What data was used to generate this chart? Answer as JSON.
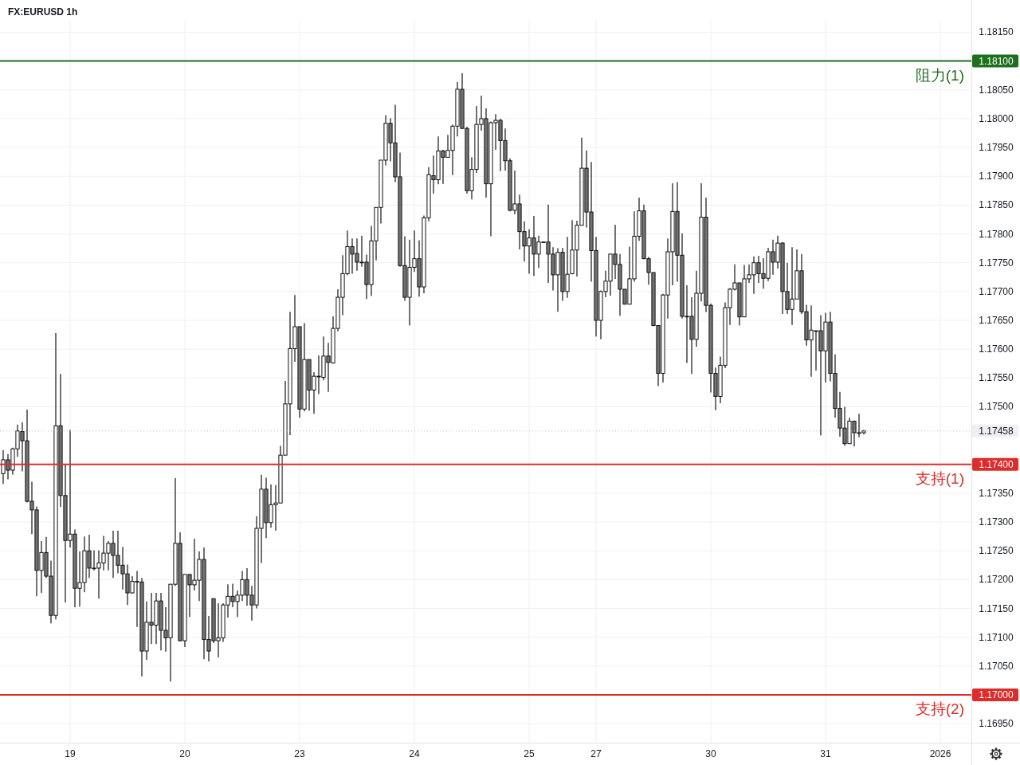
{
  "chart_data": {
    "type": "candlestick",
    "title": "FX:EURUSD 1h",
    "categories": [
      null,
      null,
      null,
      null,
      null,
      null,
      null,
      null,
      null,
      null,
      null,
      null,
      null,
      null,
      "19",
      null,
      null,
      null,
      null,
      null,
      null,
      null,
      null,
      null,
      null,
      null,
      null,
      null,
      null,
      null,
      null,
      null,
      null,
      null,
      null,
      null,
      null,
      null,
      "20",
      null,
      null,
      null,
      null,
      null,
      null,
      null,
      null,
      null,
      null,
      null,
      null,
      null,
      null,
      null,
      null,
      null,
      null,
      null,
      null,
      null,
      null,
      null,
      "23",
      null,
      null,
      null,
      null,
      null,
      null,
      null,
      null,
      null,
      null,
      null,
      null,
      null,
      null,
      null,
      null,
      null,
      null,
      null,
      null,
      null,
      null,
      null,
      "24",
      null,
      null,
      null,
      null,
      null,
      null,
      null,
      null,
      null,
      null,
      null,
      null,
      null,
      null,
      null,
      null,
      null,
      null,
      null,
      null,
      null,
      null,
      null,
      "25",
      null,
      null,
      null,
      null,
      null,
      null,
      null,
      null,
      null,
      null,
      null,
      null,
      null,
      "27",
      null,
      null,
      null,
      null,
      null,
      null,
      null,
      null,
      null,
      null,
      null,
      null,
      null,
      null,
      null,
      null,
      null,
      null,
      null,
      null,
      null,
      null,
      null,
      "30",
      null,
      null,
      null,
      null,
      null,
      null,
      null,
      null,
      null,
      null,
      null,
      null,
      null,
      null,
      null,
      null,
      null,
      null,
      null,
      null,
      null,
      null,
      null,
      "31",
      null,
      null,
      null,
      null,
      null,
      null,
      null,
      null,
      null,
      null,
      null,
      null,
      null,
      null,
      null,
      null,
      null,
      null,
      null,
      null,
      null,
      null,
      null,
      "2026",
      null,
      null,
      null,
      null,
      null,
      null
    ],
    "ohlc": [
      [
        1.17384,
        1.17425,
        1.17366,
        1.17408
      ],
      [
        1.17408,
        1.17418,
        1.17374,
        1.1739
      ],
      [
        1.1739,
        1.17429,
        1.17382,
        1.17427
      ],
      [
        1.17427,
        1.17469,
        1.17413,
        1.17458
      ],
      [
        1.17457,
        1.17473,
        1.17388,
        1.17441
      ],
      [
        1.17441,
        1.17495,
        1.17334,
        1.17336
      ],
      [
        1.17336,
        1.1737,
        1.17279,
        1.17321
      ],
      [
        1.17321,
        1.17327,
        1.17171,
        1.17216
      ],
      [
        1.17216,
        1.17267,
        1.17177,
        1.17247
      ],
      [
        1.17247,
        1.17274,
        1.17203,
        1.17206
      ],
      [
        1.17206,
        1.17233,
        1.17124,
        1.17138
      ],
      [
        1.17138,
        1.17628,
        1.17131,
        1.17467
      ],
      [
        1.17467,
        1.17557,
        1.17326,
        1.17346
      ],
      [
        1.17346,
        1.17401,
        1.1716,
        1.17268
      ],
      [
        1.17268,
        1.1746,
        1.17256,
        1.17279
      ],
      [
        1.17279,
        1.17287,
        1.17152,
        1.17185
      ],
      [
        1.17185,
        1.17249,
        1.17153,
        1.17195
      ],
      [
        1.17195,
        1.17275,
        1.17178,
        1.1725
      ],
      [
        1.1725,
        1.17278,
        1.17203,
        1.1722
      ],
      [
        1.1722,
        1.17251,
        1.17216,
        1.1722
      ],
      [
        1.1722,
        1.17251,
        1.17167,
        1.17229
      ],
      [
        1.17229,
        1.17276,
        1.17216,
        1.17246
      ],
      [
        1.17246,
        1.17267,
        1.17216,
        1.17263
      ],
      [
        1.17263,
        1.17285,
        1.17203,
        1.17242
      ],
      [
        1.17242,
        1.17285,
        1.17211,
        1.17225
      ],
      [
        1.17225,
        1.17257,
        1.17183,
        1.1721
      ],
      [
        1.1721,
        1.17226,
        1.17156,
        1.17177
      ],
      [
        1.17177,
        1.17206,
        1.17176,
        1.17197
      ],
      [
        1.17197,
        1.17215,
        1.17118,
        1.17197
      ],
      [
        1.17196,
        1.17203,
        1.17032,
        1.17076
      ],
      [
        1.17076,
        1.17162,
        1.17061,
        1.17126
      ],
      [
        1.17126,
        1.17177,
        1.17088,
        1.17121
      ],
      [
        1.17121,
        1.17177,
        1.17088,
        1.17163
      ],
      [
        1.17163,
        1.17177,
        1.17077,
        1.17112
      ],
      [
        1.17112,
        1.17152,
        1.17075,
        1.17099
      ],
      [
        1.17099,
        1.17192,
        1.17023,
        1.17192
      ],
      [
        1.17192,
        1.17376,
        1.17189,
        1.17263
      ],
      [
        1.17263,
        1.17282,
        1.17093,
        1.17094
      ],
      [
        1.17094,
        1.17209,
        1.17083,
        1.17209
      ],
      [
        1.17209,
        1.17209,
        1.17135,
        1.17191
      ],
      [
        1.17191,
        1.17271,
        1.17181,
        1.17199
      ],
      [
        1.17199,
        1.17249,
        1.17163,
        1.17235
      ],
      [
        1.17235,
        1.17256,
        1.17062,
        1.17096
      ],
      [
        1.17096,
        1.17137,
        1.17058,
        1.17076
      ],
      [
        1.17167,
        1.17167,
        1.1709,
        1.17094
      ],
      [
        1.17094,
        1.17159,
        1.17065,
        1.17099
      ],
      [
        1.17099,
        1.17159,
        1.17092,
        1.17156
      ],
      [
        1.17156,
        1.17192,
        1.17134,
        1.17171
      ],
      [
        1.17171,
        1.17193,
        1.17152,
        1.17162
      ],
      [
        1.17162,
        1.17181,
        1.17135,
        1.17173
      ],
      [
        1.17173,
        1.17215,
        1.17163,
        1.172
      ],
      [
        1.172,
        1.1722,
        1.17155,
        1.17173
      ],
      [
        1.17173,
        1.17189,
        1.17129,
        1.17156
      ],
      [
        1.17156,
        1.1731,
        1.1715,
        1.17289
      ],
      [
        1.17289,
        1.17382,
        1.17229,
        1.17357
      ],
      [
        1.17357,
        1.17377,
        1.17272,
        1.17299
      ],
      [
        1.17299,
        1.17365,
        1.1729,
        1.1733
      ],
      [
        1.1733,
        1.17364,
        1.17285,
        1.17333
      ],
      [
        1.17333,
        1.17432,
        1.17333,
        1.17416
      ],
      [
        1.17416,
        1.17545,
        1.17416,
        1.17505
      ],
      [
        1.17505,
        1.17665,
        1.17451,
        1.17601
      ],
      [
        1.17601,
        1.17694,
        1.17578,
        1.17639
      ],
      [
        1.17639,
        1.17639,
        1.17481,
        1.17496
      ],
      [
        1.17496,
        1.17645,
        1.17492,
        1.17582
      ],
      [
        1.17582,
        1.17582,
        1.17493,
        1.17529
      ],
      [
        1.17529,
        1.1756,
        1.17488,
        1.17553
      ],
      [
        1.17553,
        1.17589,
        1.17522,
        1.17553
      ],
      [
        1.17551,
        1.17622,
        1.17546,
        1.17588
      ],
      [
        1.17588,
        1.17611,
        1.17526,
        1.17577
      ],
      [
        1.17576,
        1.17657,
        1.17575,
        1.17636
      ],
      [
        1.17636,
        1.17704,
        1.17631,
        1.1769
      ],
      [
        1.1769,
        1.17763,
        1.17659,
        1.17731
      ],
      [
        1.17731,
        1.17806,
        1.17728,
        1.17778
      ],
      [
        1.17778,
        1.17792,
        1.17731,
        1.17765
      ],
      [
        1.17766,
        1.17792,
        1.17736,
        1.17751
      ],
      [
        1.17751,
        1.17797,
        1.17743,
        1.17751
      ],
      [
        1.17751,
        1.17764,
        1.17687,
        1.17712
      ],
      [
        1.17712,
        1.17814,
        1.17692,
        1.17788
      ],
      [
        1.17788,
        1.17846,
        1.17754,
        1.17846
      ],
      [
        1.17846,
        1.17928,
        1.17818,
        1.17928
      ],
      [
        1.17928,
        1.18006,
        1.17919,
        1.17992
      ],
      [
        1.17992,
        1.18001,
        1.17926,
        1.17958
      ],
      [
        1.17958,
        1.18024,
        1.1789,
        1.17899
      ],
      [
        1.17899,
        1.17941,
        1.17743,
        1.17745
      ],
      [
        1.17745,
        1.17796,
        1.17684,
        1.1769
      ],
      [
        1.1769,
        1.1779,
        1.17641,
        1.17742
      ],
      [
        1.17742,
        1.17806,
        1.17734,
        1.17757
      ],
      [
        1.17757,
        1.17789,
        1.17691,
        1.17708
      ],
      [
        1.17708,
        1.17832,
        1.17697,
        1.17828
      ],
      [
        1.17828,
        1.17916,
        1.17822,
        1.17903
      ],
      [
        1.17901,
        1.17936,
        1.1787,
        1.17894
      ],
      [
        1.17894,
        1.17969,
        1.17886,
        1.17944
      ],
      [
        1.17944,
        1.17946,
        1.17887,
        1.17933
      ],
      [
        1.17933,
        1.17972,
        1.17933,
        1.17945
      ],
      [
        1.17945,
        1.1799,
        1.17902,
        1.17987
      ],
      [
        1.17987,
        1.18064,
        1.17969,
        1.18051
      ],
      [
        1.18051,
        1.18079,
        1.17983,
        1.17983
      ],
      [
        1.17983,
        1.17986,
        1.1787,
        1.17875
      ],
      [
        1.17875,
        1.17933,
        1.1786,
        1.17912
      ],
      [
        1.17912,
        1.18022,
        1.17906,
        1.1799
      ],
      [
        1.1799,
        1.1804,
        1.17979,
        1.18
      ],
      [
        1.18,
        1.18018,
        1.17863,
        1.17887
      ],
      [
        1.17887,
        1.17995,
        1.17796,
        1.17993
      ],
      [
        1.17993,
        1.18008,
        1.17946,
        1.17997
      ],
      [
        1.17997,
        1.18,
        1.17909,
        1.17962
      ],
      [
        1.17962,
        1.17983,
        1.1791,
        1.17927
      ],
      [
        1.17927,
        1.17931,
        1.17839,
        1.17841
      ],
      [
        1.17841,
        1.1791,
        1.17834,
        1.17852
      ],
      [
        1.17852,
        1.17868,
        1.17773,
        1.17804
      ],
      [
        1.17804,
        1.17822,
        1.17752,
        1.17779
      ],
      [
        1.17779,
        1.17808,
        1.17731,
        1.17793
      ],
      [
        1.17793,
        1.17831,
        1.17727,
        1.17765
      ],
      [
        1.17765,
        1.17797,
        1.17741,
        1.17786
      ],
      [
        1.17786,
        1.17786,
        1.17786,
        1.17786
      ],
      [
        1.17786,
        1.17851,
        1.17715,
        1.17765
      ],
      [
        1.17765,
        1.17777,
        1.17702,
        1.17729
      ],
      [
        1.17729,
        1.17775,
        1.17665,
        1.17768
      ],
      [
        1.17768,
        1.17776,
        1.17684,
        1.177
      ],
      [
        1.177,
        1.17795,
        1.17689,
        1.1773
      ],
      [
        1.17731,
        1.17824,
        1.1773,
        1.17772
      ],
      [
        1.17772,
        1.17823,
        1.17726,
        1.17815
      ],
      [
        1.17815,
        1.17967,
        1.17815,
        1.17914
      ],
      [
        1.17914,
        1.17945,
        1.17811,
        1.17838
      ],
      [
        1.17838,
        1.17925,
        1.17717,
        1.17771
      ],
      [
        1.17771,
        1.17795,
        1.17622,
        1.1765
      ],
      [
        1.1765,
        1.17702,
        1.17617,
        1.177
      ],
      [
        1.177,
        1.17736,
        1.1769,
        1.17718
      ],
      [
        1.17718,
        1.17765,
        1.17693,
        1.17765
      ],
      [
        1.17765,
        1.17816,
        1.17722,
        1.17747
      ],
      [
        1.17747,
        1.17765,
        1.17658,
        1.17704
      ],
      [
        1.17704,
        1.17704,
        1.17678,
        1.17678
      ],
      [
        1.17678,
        1.17778,
        1.17678,
        1.17722
      ],
      [
        1.17722,
        1.17839,
        1.17717,
        1.17796
      ],
      [
        1.17796,
        1.17863,
        1.17788,
        1.1784
      ],
      [
        1.1784,
        1.17851,
        1.17756,
        1.17757
      ],
      [
        1.17757,
        1.1776,
        1.17712,
        1.17733
      ],
      [
        1.17733,
        1.17733,
        1.1764,
        1.17641
      ],
      [
        1.17641,
        1.17641,
        1.17536,
        1.17558
      ],
      [
        1.17558,
        1.17696,
        1.17542,
        1.17694
      ],
      [
        1.17694,
        1.17792,
        1.17653,
        1.17769
      ],
      [
        1.17769,
        1.17888,
        1.17711,
        1.17839
      ],
      [
        1.17839,
        1.1789,
        1.17717,
        1.17763
      ],
      [
        1.17763,
        1.17801,
        1.17653,
        1.17657
      ],
      [
        1.17657,
        1.17711,
        1.17576,
        1.17657
      ],
      [
        1.17657,
        1.1769,
        1.17557,
        1.17617
      ],
      [
        1.17617,
        1.17736,
        1.17604,
        1.17697
      ],
      [
        1.17697,
        1.17888,
        1.17683,
        1.17829
      ],
      [
        1.17829,
        1.17863,
        1.17664,
        1.17676
      ],
      [
        1.17676,
        1.17679,
        1.17525,
        1.17558
      ],
      [
        1.17558,
        1.17568,
        1.17494,
        1.17518
      ],
      [
        1.17518,
        1.17587,
        1.17506,
        1.17572
      ],
      [
        1.17572,
        1.17681,
        1.17567,
        1.17672
      ],
      [
        1.17672,
        1.17706,
        1.17642,
        1.17704
      ],
      [
        1.17704,
        1.17747,
        1.17702,
        1.17715
      ],
      [
        1.17715,
        1.17715,
        1.17641,
        1.17656
      ],
      [
        1.17656,
        1.17746,
        1.17656,
        1.17722
      ],
      [
        1.17722,
        1.17747,
        1.17715,
        1.17729
      ],
      [
        1.17729,
        1.17761,
        1.17696,
        1.1775
      ],
      [
        1.1775,
        1.17762,
        1.17715,
        1.17731
      ],
      [
        1.17731,
        1.17758,
        1.17705,
        1.17723
      ],
      [
        1.17723,
        1.17776,
        1.17718,
        1.17769
      ],
      [
        1.17769,
        1.1779,
        1.17729,
        1.17751
      ],
      [
        1.17751,
        1.17797,
        1.1774,
        1.17784
      ],
      [
        1.17784,
        1.17786,
        1.17661,
        1.177
      ],
      [
        1.177,
        1.1775,
        1.17661,
        1.17669
      ],
      [
        1.17669,
        1.17777,
        1.17642,
        1.17687
      ],
      [
        1.17687,
        1.17773,
        1.17687,
        1.17736
      ],
      [
        1.17736,
        1.17765,
        1.17661,
        1.17665
      ],
      [
        1.17665,
        1.17677,
        1.17606,
        1.17616
      ],
      [
        1.17616,
        1.17676,
        1.17552,
        1.17633
      ],
      [
        1.17632,
        1.17632,
        1.17563,
        1.17632
      ],
      [
        1.17632,
        1.17659,
        1.1745,
        1.17597
      ],
      [
        1.17597,
        1.17663,
        1.17542,
        1.17647
      ],
      [
        1.17647,
        1.17665,
        1.17544,
        1.17558
      ],
      [
        1.17558,
        1.17591,
        1.17481,
        1.17497
      ],
      [
        1.17497,
        1.17526,
        1.17448,
        1.17463
      ],
      [
        1.17463,
        1.175,
        1.17432,
        1.17436
      ],
      [
        1.17436,
        1.17481,
        1.17436,
        1.17475
      ],
      [
        1.17475,
        1.17476,
        1.17431,
        1.17455
      ],
      [
        1.17455,
        1.17488,
        1.17447,
        1.17455
      ],
      [
        1.17455,
        1.1746,
        1.17452,
        1.17458
      ],
      null,
      null,
      null,
      null,
      null,
      null,
      null,
      null,
      null,
      null,
      null,
      null,
      null,
      null,
      null,
      null,
      null,
      null,
      null,
      null,
      null,
      null
    ],
    "ylim": [
      1.16917,
      1.1817
    ],
    "yticks": [
      {
        "value": 1.1815,
        "label": "1.18150"
      },
      {
        "value": 1.1805,
        "label": "1.18050"
      },
      {
        "value": 1.18,
        "label": "1.18000"
      },
      {
        "value": 1.1795,
        "label": "1.17950"
      },
      {
        "value": 1.179,
        "label": "1.17900"
      },
      {
        "value": 1.1785,
        "label": "1.17850"
      },
      {
        "value": 1.178,
        "label": "1.17800"
      },
      {
        "value": 1.1775,
        "label": "1.17750"
      },
      {
        "value": 1.177,
        "label": "1.17700"
      },
      {
        "value": 1.1765,
        "label": "1.17650"
      },
      {
        "value": 1.176,
        "label": "1.17600"
      },
      {
        "value": 1.1755,
        "label": "1.17550"
      },
      {
        "value": 1.175,
        "label": "1.17500"
      },
      {
        "value": 1.1735,
        "label": "1.17350"
      },
      {
        "value": 1.173,
        "label": "1.17300"
      },
      {
        "value": 1.1725,
        "label": "1.17250"
      },
      {
        "value": 1.172,
        "label": "1.17200"
      },
      {
        "value": 1.1715,
        "label": "1.17150"
      },
      {
        "value": 1.171,
        "label": "1.17100"
      },
      {
        "value": 1.1705,
        "label": "1.17050"
      },
      {
        "value": 1.1695,
        "label": "1.16950"
      }
    ],
    "grid": true,
    "ref_lines": [
      {
        "axis": "y",
        "value": 1.181,
        "label": "阻力(1)",
        "color": "#1e6f1e"
      },
      {
        "axis": "y",
        "value": 1.174,
        "label": "支持(1)",
        "color": "#dc2c2c"
      },
      {
        "axis": "y",
        "value": 1.17,
        "label": "支持(2)",
        "color": "#dc2c2c"
      },
      {
        "axis": "y",
        "value": 1.17458,
        "color": "#b2b5be",
        "line_style": "dotted"
      }
    ],
    "annotations": [
      "1.18100",
      "1.17400",
      "1.17000",
      "1.17458"
    ]
  }
}
